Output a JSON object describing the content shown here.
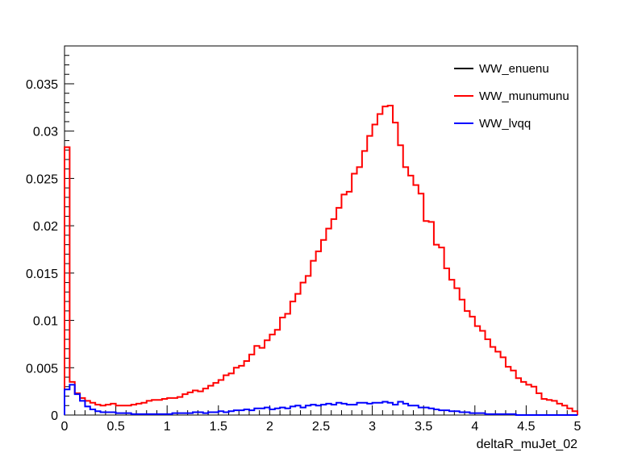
{
  "chart_data": {
    "type": "line",
    "style": "step-histogram",
    "xlabel": "deltaR_muJet_02",
    "ylabel": "",
    "title": "",
    "xlim": [
      0,
      5
    ],
    "ylim": [
      0,
      0.039
    ],
    "grid": false,
    "legend_position": "top-right",
    "x_ticks": [
      "0",
      "0.5",
      "1",
      "1.5",
      "2",
      "2.5",
      "3",
      "3.5",
      "4",
      "4.5",
      "5"
    ],
    "y_ticks": [
      "0",
      "0.005",
      "0.01",
      "0.015",
      "0.02",
      "0.025",
      "0.03",
      "0.035"
    ],
    "bin_width": 0.05,
    "series": [
      {
        "name": "WW_enuenu",
        "color": "#000000",
        "values": []
      },
      {
        "name": "WW_munumunu",
        "color": "#ff0000",
        "values": [
          0.0283,
          0.0035,
          0.0023,
          0.0018,
          0.0015,
          0.0013,
          0.0011,
          0.001,
          0.0011,
          0.0012,
          0.001,
          0.001,
          0.001,
          0.0011,
          0.0012,
          0.0013,
          0.0015,
          0.0016,
          0.0016,
          0.0017,
          0.0018,
          0.0018,
          0.0019,
          0.0022,
          0.0024,
          0.0026,
          0.0025,
          0.0028,
          0.0031,
          0.0034,
          0.0037,
          0.0042,
          0.0044,
          0.005,
          0.0052,
          0.0057,
          0.0064,
          0.0073,
          0.0071,
          0.0079,
          0.0085,
          0.009,
          0.0103,
          0.0107,
          0.012,
          0.0128,
          0.014,
          0.0147,
          0.0163,
          0.0173,
          0.0185,
          0.0197,
          0.0207,
          0.0219,
          0.0233,
          0.0236,
          0.0255,
          0.0262,
          0.0279,
          0.0295,
          0.0307,
          0.0318,
          0.0326,
          0.0327,
          0.0309,
          0.0285,
          0.0262,
          0.0253,
          0.0243,
          0.0234,
          0.0205,
          0.0204,
          0.018,
          0.0177,
          0.0155,
          0.0143,
          0.0134,
          0.0122,
          0.011,
          0.0104,
          0.0094,
          0.0089,
          0.008,
          0.0072,
          0.0067,
          0.0061,
          0.0051,
          0.0047,
          0.0039,
          0.0035,
          0.0032,
          0.003,
          0.0023,
          0.0017,
          0.0016,
          0.0015,
          0.0012,
          0.001,
          0.0007,
          0.0004
        ]
      },
      {
        "name": "WW_lvqq",
        "color": "#0000ff",
        "values": [
          0.0027,
          0.0032,
          0.0022,
          0.0015,
          0.0009,
          0.0006,
          0.0004,
          0.0003,
          0.0003,
          0.0003,
          0.0002,
          0.0002,
          0.0002,
          0.0001,
          0.0001,
          0.0001,
          0.0001,
          0.0001,
          0.0001,
          0.0001,
          0.0001,
          0.0002,
          0.0002,
          0.0002,
          0.0002,
          0.0003,
          0.0003,
          0.0002,
          0.0003,
          0.0003,
          0.0004,
          0.0003,
          0.0004,
          0.0005,
          0.0005,
          0.0006,
          0.0005,
          0.0007,
          0.0007,
          0.0008,
          0.0006,
          0.0007,
          0.0008,
          0.0007,
          0.0009,
          0.001,
          0.0008,
          0.001,
          0.0011,
          0.001,
          0.0011,
          0.0012,
          0.0011,
          0.0013,
          0.0012,
          0.0011,
          0.0011,
          0.0013,
          0.0013,
          0.0012,
          0.0013,
          0.0013,
          0.0014,
          0.0013,
          0.0011,
          0.0014,
          0.0012,
          0.001,
          0.001,
          0.0008,
          0.0008,
          0.0007,
          0.0006,
          0.0005,
          0.0005,
          0.0004,
          0.0004,
          0.0003,
          0.0003,
          0.0002,
          0.0002,
          0.0002,
          0.0001,
          0.0001,
          0.0001,
          0.0001,
          0.0001,
          0.0001,
          0.0,
          0.0,
          0.0,
          0.0,
          0.0,
          0.0,
          0.0,
          0.0,
          0.0,
          0.0,
          0.0,
          0.0
        ]
      }
    ]
  }
}
